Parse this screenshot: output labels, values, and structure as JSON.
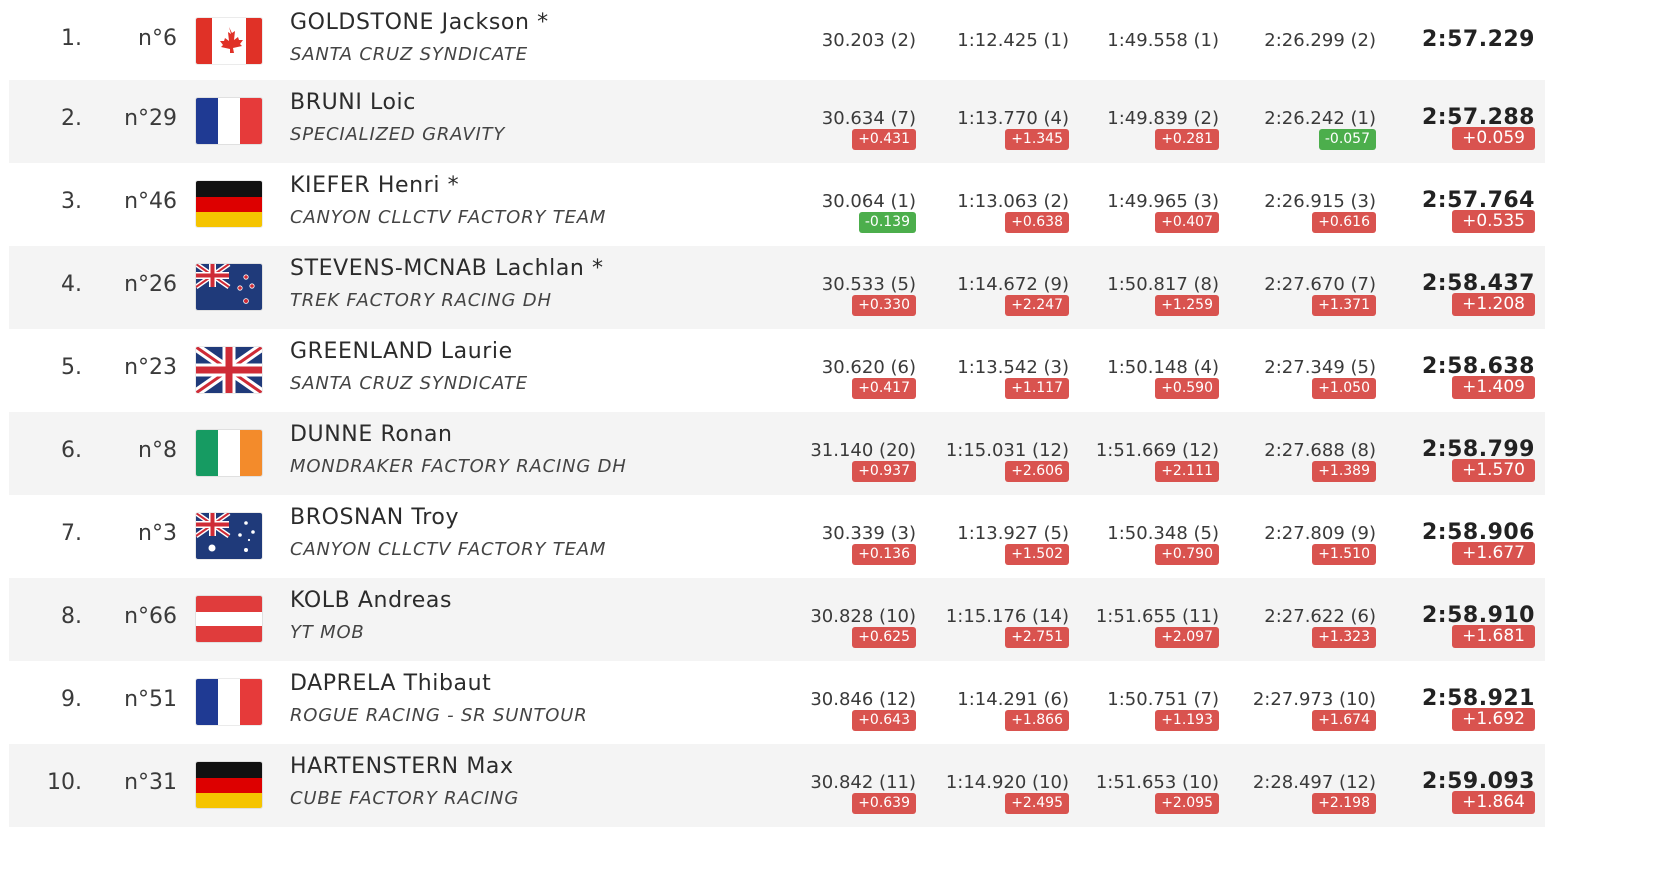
{
  "colors": {
    "gap_positive": "#d9534f",
    "gap_negative": "#4cae4c",
    "row_alt": "#f4f4f4"
  },
  "rows": [
    {
      "pos": "1.",
      "num": "n°6",
      "flag": "canada-flag",
      "name": "GOLDSTONE Jackson *",
      "team": "SANTA CRUZ SYNDICATE",
      "s1": "30.203 (2)",
      "s2": "1:12.425 (1)",
      "s3": "1:49.558 (1)",
      "s4": "2:26.299 (2)",
      "total": "2:57.229"
    },
    {
      "pos": "2.",
      "num": "n°29",
      "flag": "france-flag",
      "name": "BRUNI Loic",
      "team": "SPECIALIZED GRAVITY",
      "s1": "30.634 (7)",
      "g1": "+0.431",
      "s2": "1:13.770 (4)",
      "g2": "+1.345",
      "s3": "1:49.839 (2)",
      "g3": "+0.281",
      "s4": "2:26.242 (1)",
      "g4": "-0.057",
      "total": "2:57.288",
      "tgap": "+0.059"
    },
    {
      "pos": "3.",
      "num": "n°46",
      "flag": "germany-flag",
      "name": "KIEFER Henri *",
      "team": "CANYON CLLCTV FACTORY TEAM",
      "s1": "30.064 (1)",
      "g1": "-0.139",
      "s2": "1:13.063 (2)",
      "g2": "+0.638",
      "s3": "1:49.965 (3)",
      "g3": "+0.407",
      "s4": "2:26.915 (3)",
      "g4": "+0.616",
      "total": "2:57.764",
      "tgap": "+0.535"
    },
    {
      "pos": "4.",
      "num": "n°26",
      "flag": "new-zealand-flag",
      "name": "STEVENS-MCNAB Lachlan *",
      "team": "TREK FACTORY RACING DH",
      "s1": "30.533 (5)",
      "g1": "+0.330",
      "s2": "1:14.672 (9)",
      "g2": "+2.247",
      "s3": "1:50.817 (8)",
      "g3": "+1.259",
      "s4": "2:27.670 (7)",
      "g4": "+1.371",
      "total": "2:58.437",
      "tgap": "+1.208"
    },
    {
      "pos": "5.",
      "num": "n°23",
      "flag": "uk-flag",
      "name": "GREENLAND Laurie",
      "team": "SANTA CRUZ SYNDICATE",
      "s1": "30.620 (6)",
      "g1": "+0.417",
      "s2": "1:13.542 (3)",
      "g2": "+1.117",
      "s3": "1:50.148 (4)",
      "g3": "+0.590",
      "s4": "2:27.349 (5)",
      "g4": "+1.050",
      "total": "2:58.638",
      "tgap": "+1.409"
    },
    {
      "pos": "6.",
      "num": "n°8",
      "flag": "ireland-flag",
      "name": "DUNNE Ronan",
      "team": "MONDRAKER FACTORY RACING DH",
      "s1": "31.140 (20)",
      "g1": "+0.937",
      "s2": "1:15.031 (12)",
      "g2": "+2.606",
      "s3": "1:51.669 (12)",
      "g3": "+2.111",
      "s4": "2:27.688 (8)",
      "g4": "+1.389",
      "total": "2:58.799",
      "tgap": "+1.570"
    },
    {
      "pos": "7.",
      "num": "n°3",
      "flag": "australia-flag",
      "name": "BROSNAN Troy",
      "team": "CANYON CLLCTV FACTORY TEAM",
      "s1": "30.339 (3)",
      "g1": "+0.136",
      "s2": "1:13.927 (5)",
      "g2": "+1.502",
      "s3": "1:50.348 (5)",
      "g3": "+0.790",
      "s4": "2:27.809 (9)",
      "g4": "+1.510",
      "total": "2:58.906",
      "tgap": "+1.677"
    },
    {
      "pos": "8.",
      "num": "n°66",
      "flag": "austria-flag",
      "name": "KOLB Andreas",
      "team": "YT MOB",
      "s1": "30.828 (10)",
      "g1": "+0.625",
      "s2": "1:15.176 (14)",
      "g2": "+2.751",
      "s3": "1:51.655 (11)",
      "g3": "+2.097",
      "s4": "2:27.622 (6)",
      "g4": "+1.323",
      "total": "2:58.910",
      "tgap": "+1.681"
    },
    {
      "pos": "9.",
      "num": "n°51",
      "flag": "france-flag",
      "name": "DAPRELA Thibaut",
      "team": "ROGUE RACING - SR SUNTOUR",
      "s1": "30.846 (12)",
      "g1": "+0.643",
      "s2": "1:14.291 (6)",
      "g2": "+1.866",
      "s3": "1:50.751 (7)",
      "g3": "+1.193",
      "s4": "2:27.973 (10)",
      "g4": "+1.674",
      "total": "2:58.921",
      "tgap": "+1.692"
    },
    {
      "pos": "10.",
      "num": "n°31",
      "flag": "germany-flag",
      "name": "HARTENSTERN Max",
      "team": "CUBE FACTORY RACING",
      "s1": "30.842 (11)",
      "g1": "+0.639",
      "s2": "1:14.920 (10)",
      "g2": "+2.495",
      "s3": "1:51.653 (10)",
      "g3": "+2.095",
      "s4": "2:28.497 (12)",
      "g4": "+2.198",
      "total": "2:59.093",
      "tgap": "+1.864"
    }
  ]
}
